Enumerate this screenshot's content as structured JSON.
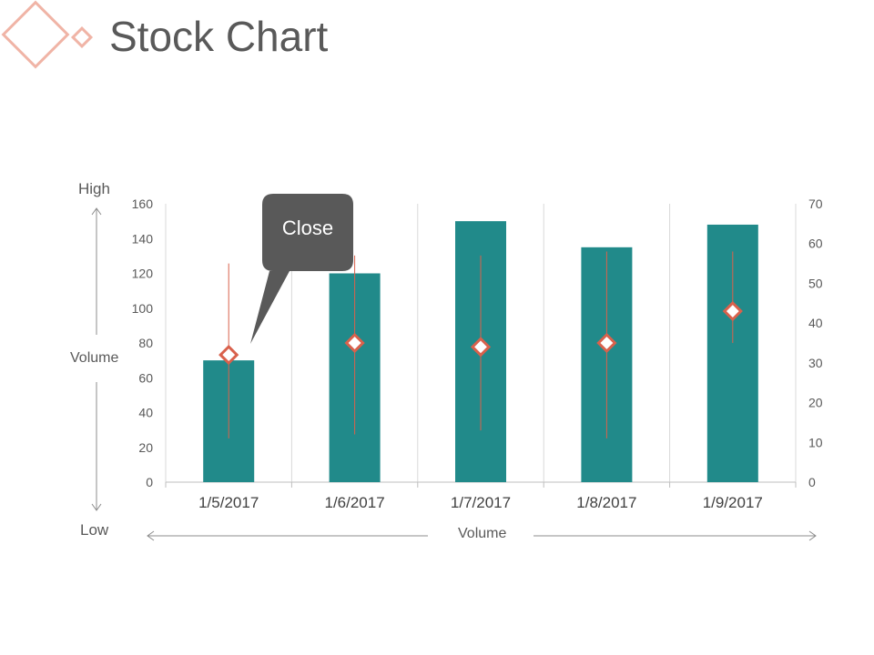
{
  "title": "Stock Chart",
  "colors": {
    "bar": "#218A8A",
    "marker": "#D9614C",
    "callout": "#595959",
    "logo": "#F0B4A6"
  },
  "side_labels": {
    "top": "High",
    "bottom": "Low",
    "left_axis": "Volume",
    "bottom_axis": "Volume"
  },
  "callout": {
    "label": "Close"
  },
  "chart_data": {
    "type": "bar",
    "categories": [
      "1/5/2017",
      "1/6/2017",
      "1/7/2017",
      "1/8/2017",
      "1/9/2017"
    ],
    "volume": {
      "values": [
        70,
        120,
        150,
        135,
        148
      ],
      "axis": "left",
      "ylim": [
        0,
        160
      ],
      "ticks": [
        0,
        20,
        40,
        60,
        80,
        100,
        120,
        140,
        160
      ]
    },
    "stock": {
      "high": [
        55,
        57,
        57,
        58,
        58
      ],
      "low": [
        11,
        12,
        13,
        11,
        35
      ],
      "close": [
        32,
        35,
        34,
        35,
        43
      ],
      "axis": "right",
      "ylim": [
        0,
        70
      ],
      "ticks": [
        0,
        10,
        20,
        30,
        40,
        50,
        60,
        70
      ]
    },
    "grid": "vertical-between-categories"
  }
}
